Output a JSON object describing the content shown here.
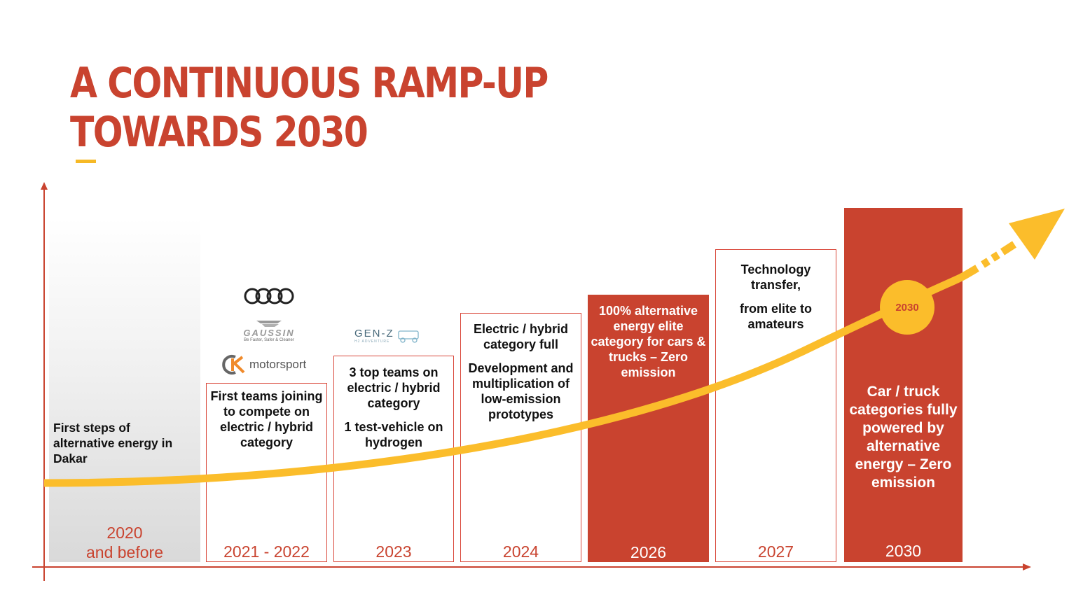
{
  "title": {
    "line1": "A CONTINUOUS RAMP-UP",
    "line2": "TOWARDS 2030"
  },
  "colors": {
    "brand_red": "#c9432f",
    "accent_yellow": "#fbbd2b",
    "box_border": "#d9473a"
  },
  "stages": [
    {
      "year_line1": "2020",
      "year_line2": "and before",
      "texts": [
        "First steps of alternative energy in Dakar"
      ]
    },
    {
      "year": "2021 - 2022",
      "texts": [
        "First teams joining to compete on electric / hybrid category"
      ]
    },
    {
      "year": "2023",
      "texts": [
        "3 top teams on electric / hybrid category",
        "1 test-vehicle on hydrogen"
      ]
    },
    {
      "year": "2024",
      "texts": [
        "Electric / hybrid category full",
        "Development and multiplication of low-emission prototypes"
      ]
    },
    {
      "year": "2026",
      "texts": [
        "100% alternative energy elite category for cars & trucks – Zero emission"
      ]
    },
    {
      "year": "2027",
      "texts": [
        "Technology transfer,",
        "from elite to amateurs"
      ]
    },
    {
      "year": "2030",
      "texts": [
        "Car / truck categories fully powered by alternative energy – Zero emission"
      ]
    }
  ],
  "curve_marker": {
    "label": "2030"
  },
  "logos": {
    "audi": {
      "icon": "audi-rings-icon"
    },
    "gaussin": {
      "name": "GAUSSIN",
      "tagline": "Be Faster, Safer & Cleaner"
    },
    "motorsport": {
      "name": "motorsport",
      "icon": "gck-icon"
    },
    "genz": {
      "name": "GEN-Z",
      "tagline": "H2 ADVENTURE",
      "icon": "truck-icon"
    }
  }
}
